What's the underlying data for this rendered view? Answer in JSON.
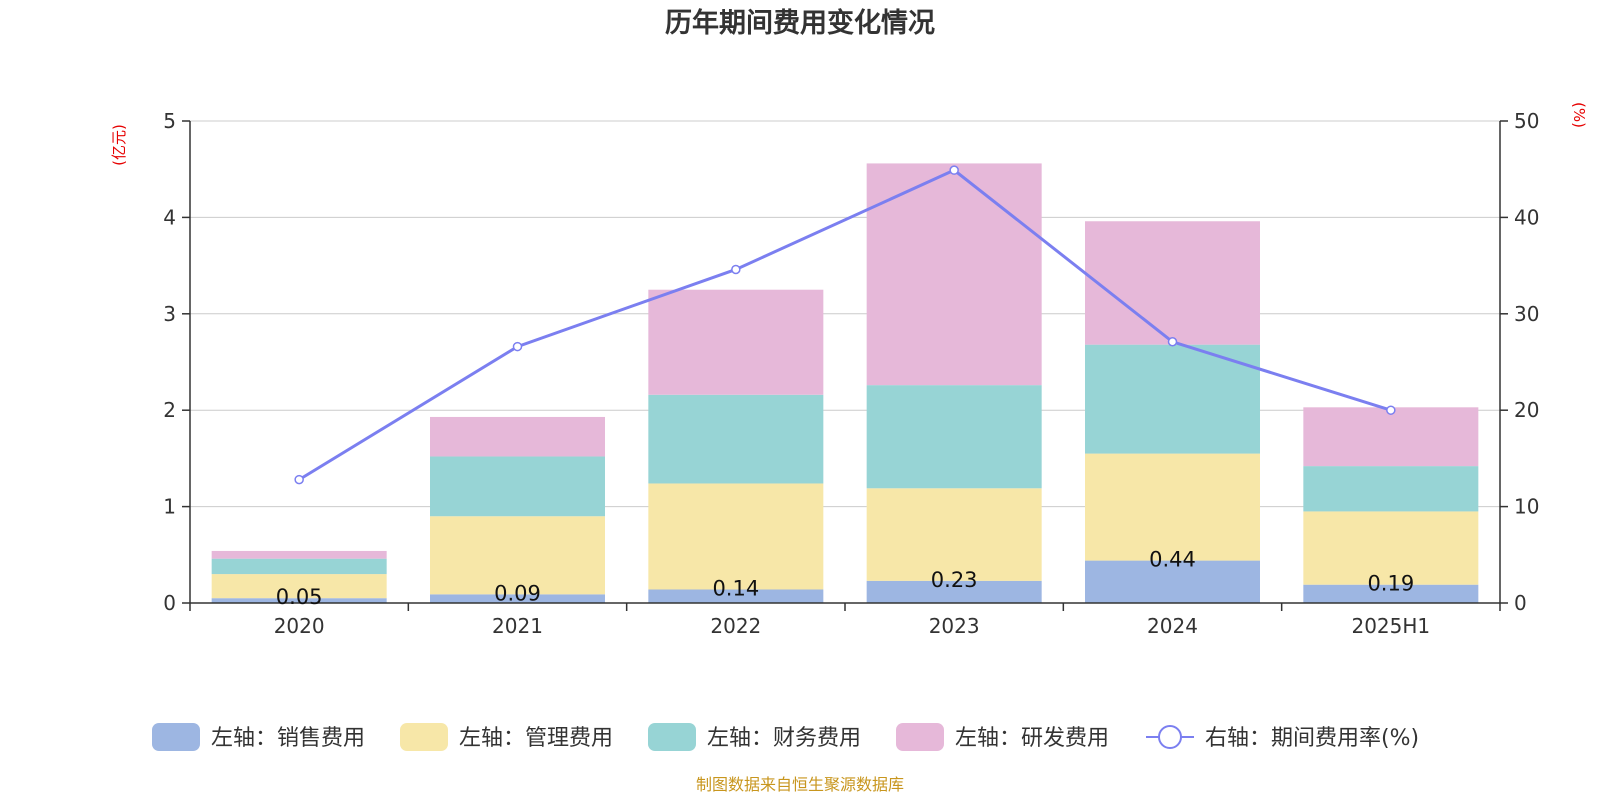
{
  "chart_data": {
    "type": "bar",
    "stacked": true,
    "title": "历年期间费用变化情况",
    "left_axis_unit": "(亿元)",
    "right_axis_unit": "(%)",
    "categories": [
      "2020",
      "2021",
      "2022",
      "2023",
      "2024",
      "2025H1"
    ],
    "ylim_left": [
      0,
      5
    ],
    "yticks_left": [
      "0",
      "1",
      "2",
      "3",
      "4",
      "5"
    ],
    "ylim_right": [
      0,
      50
    ],
    "yticks_right": [
      "0",
      "10",
      "20",
      "30",
      "40",
      "50"
    ],
    "grid": true,
    "legend_position": "bottom",
    "series": [
      {
        "name": "左轴：销售费用",
        "axis": "left",
        "kind": "bar",
        "color": "#9db6e2",
        "values": [
          0.05,
          0.09,
          0.14,
          0.23,
          0.44,
          0.19
        ],
        "labels": [
          "0.05",
          "0.09",
          "0.14",
          "0.23",
          "0.44",
          "0.19"
        ]
      },
      {
        "name": "左轴：管理费用",
        "axis": "left",
        "kind": "bar",
        "color": "#f7e7a8",
        "values": [
          0.25,
          0.81,
          1.1,
          0.96,
          1.11,
          0.76
        ]
      },
      {
        "name": "左轴：财务费用",
        "axis": "left",
        "kind": "bar",
        "color": "#97d4d5",
        "values": [
          0.16,
          0.62,
          0.92,
          1.07,
          1.13,
          0.47
        ]
      },
      {
        "name": "左轴：研发费用",
        "axis": "left",
        "kind": "bar",
        "color": "#e6b8d9",
        "values": [
          0.08,
          0.41,
          1.09,
          2.3,
          1.28,
          0.61
        ]
      },
      {
        "name": "右轴：期间费用率(%)",
        "axis": "right",
        "kind": "line",
        "color": "#7b7ff0",
        "values": [
          12.8,
          26.6,
          34.6,
          44.9,
          27.1,
          20.0
        ]
      }
    ],
    "source": "制图数据来自恒生聚源数据库"
  }
}
